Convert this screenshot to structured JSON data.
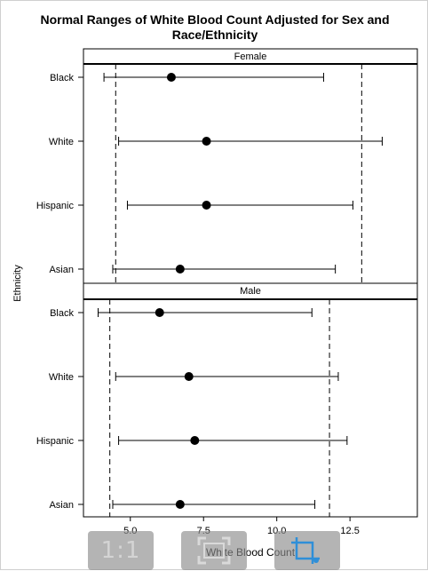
{
  "chart_data": {
    "type": "dot-errorbar",
    "title": "Normal Ranges of White Blood Count Adjusted for Sex and Race/Ethnicity",
    "title_lines": [
      "Normal Ranges of White Blood Count Adjusted for Sex and",
      "Race/Ethnicity"
    ],
    "xlabel": "White Blood Count",
    "ylabel": "Ethnicity",
    "xlim": [
      3.4,
      14.8
    ],
    "xticks": [
      5.0,
      7.5,
      10.0,
      12.5
    ],
    "xtick_labels": [
      "5.0",
      "7.5",
      "10.0",
      "12.5"
    ],
    "categories": [
      "Black",
      "White",
      "Hispanic",
      "Asian"
    ],
    "panels": [
      {
        "name": "Female",
        "reference_lines": [
          4.5,
          12.9
        ],
        "series": [
          {
            "category": "Black",
            "low": 4.1,
            "point": 6.4,
            "high": 11.6
          },
          {
            "category": "White",
            "low": 4.6,
            "point": 7.6,
            "high": 13.6
          },
          {
            "category": "Hispanic",
            "low": 4.9,
            "point": 7.6,
            "high": 12.6
          },
          {
            "category": "Asian",
            "low": 4.4,
            "point": 6.7,
            "high": 12.0
          }
        ]
      },
      {
        "name": "Male",
        "reference_lines": [
          4.3,
          11.8
        ],
        "series": [
          {
            "category": "Black",
            "low": 3.9,
            "point": 6.0,
            "high": 11.2
          },
          {
            "category": "White",
            "low": 4.5,
            "point": 7.0,
            "high": 12.1
          },
          {
            "category": "Hispanic",
            "low": 4.6,
            "point": 7.2,
            "high": 12.4
          },
          {
            "category": "Asian",
            "low": 4.4,
            "point": 6.7,
            "high": 11.3
          }
        ]
      }
    ]
  },
  "toolbar": {
    "actual_size_label": "1:1",
    "fit_icon": "fit-screen-icon",
    "crop_icon": "crop-icon",
    "crop_color": "#2f8fd8"
  }
}
